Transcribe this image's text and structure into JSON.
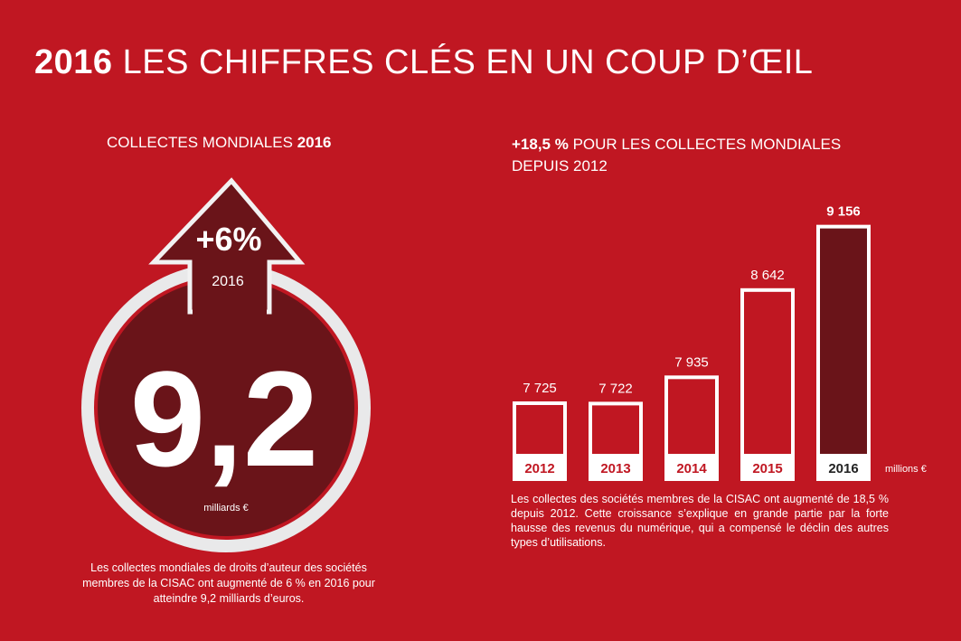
{
  "header": {
    "title_year": "2016",
    "title_rest": "LES CHIFFRES CLÉS EN UN COUP D’ŒIL"
  },
  "left_panel": {
    "heading_text": "COLLECTES MONDIALES",
    "heading_year": "2016",
    "growth": "+6%",
    "year": "2016",
    "big_value": "9,2",
    "unit": "milliards €",
    "caption": "Les collectes mondiales de droits d’auteur des sociétés membres de la CISAC ont augmenté de 6 % en 2016 pour atteindre 9,2 milliards d’euros."
  },
  "right_panel": {
    "heading_bold": "+18,5 %",
    "heading_rest": "POUR LES COLLECTES MONDIALES DEPUIS 2012",
    "unit": "millions €",
    "caption": "Les collectes des sociétés membres de la CISAC ont augmenté de 18,5 % depuis 2012. Cette croissance s’explique en grande partie par la forte hausse des revenus du numérique, qui a compensé le déclin des autres types d’utilisations."
  },
  "colors": {
    "background": "#c01722",
    "dark": "#6a1419",
    "white": "#ffffff"
  },
  "chart_data": {
    "type": "bar",
    "categories": [
      "2012",
      "2013",
      "2014",
      "2015",
      "2016"
    ],
    "values": [
      7725,
      7722,
      7935,
      8642,
      9156
    ],
    "value_labels": [
      "7 725",
      "7 722",
      "7 935",
      "8 642",
      "9 156"
    ],
    "highlight": "2016",
    "ylabel": "millions €"
  }
}
